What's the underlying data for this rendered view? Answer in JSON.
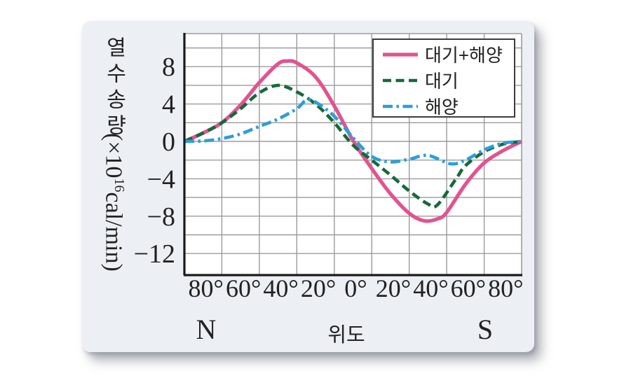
{
  "chart_data": {
    "type": "line",
    "title": "",
    "xlabel": "위도",
    "x_direction_labels": {
      "north": "N",
      "south": "S"
    },
    "ylabel": "열수송량",
    "y_unit": {
      "prefix": "(×10",
      "exponent": "16",
      "suffix": "cal/min)"
    },
    "grid": true,
    "legend_position": "top-right",
    "x_axis": {
      "min_lat": 90,
      "max_lat": -90,
      "positive_direction": "N",
      "gridline_step_deg": 20,
      "ticks": [
        {
          "lat": 80,
          "label": "80°"
        },
        {
          "lat": 60,
          "label": "60°"
        },
        {
          "lat": 40,
          "label": "40°"
        },
        {
          "lat": 20,
          "label": "20°"
        },
        {
          "lat": 0,
          "label": "0°"
        },
        {
          "lat": -20,
          "label": "20°"
        },
        {
          "lat": -40,
          "label": "40°"
        },
        {
          "lat": -60,
          "label": "60°"
        },
        {
          "lat": -80,
          "label": "80°"
        }
      ]
    },
    "y_axis": {
      "top": 11.5,
      "bottom": -14.3,
      "gridline_step": 2,
      "ticks": [
        {
          "value": 8,
          "label": "8"
        },
        {
          "value": 4,
          "label": "4"
        },
        {
          "value": 0,
          "label": "0"
        },
        {
          "value": -4,
          "label": "−4"
        },
        {
          "value": -8,
          "label": "−8"
        },
        {
          "value": -12,
          "label": "−12"
        }
      ]
    },
    "series": [
      {
        "name": "대기+해양",
        "color": "#e2538f",
        "style": "solid",
        "x": [
          90,
          80,
          70,
          60,
          50,
          40,
          35,
          30,
          20,
          10,
          0,
          -10,
          -20,
          -30,
          -38,
          -45,
          -50,
          -60,
          -70,
          -80,
          -90
        ],
        "y": [
          0,
          0.9,
          2.0,
          3.9,
          6.3,
          8.3,
          8.6,
          8.4,
          6.9,
          3.8,
          0.1,
          -2.9,
          -5.6,
          -7.7,
          -8.5,
          -8.3,
          -7.6,
          -4.6,
          -2.3,
          -1.0,
          0
        ]
      },
      {
        "name": "대기",
        "color": "#17693a",
        "style": "dashed",
        "x": [
          90,
          80,
          70,
          60,
          50,
          40,
          30,
          20,
          10,
          0,
          -10,
          -20,
          -30,
          -40,
          -45,
          -55,
          -60,
          -70,
          -80,
          -90
        ],
        "y": [
          0,
          0.9,
          2.0,
          3.5,
          5.2,
          6.0,
          5.3,
          4.0,
          2.0,
          -0.4,
          -2.0,
          -3.6,
          -5.3,
          -6.7,
          -6.8,
          -4.0,
          -2.6,
          -1.1,
          -0.3,
          0
        ]
      },
      {
        "name": "해양",
        "color": "#2b9fd9",
        "style": "dash-dot",
        "x": [
          90,
          80,
          70,
          60,
          50,
          40,
          30,
          25,
          20,
          10,
          0,
          -10,
          -20,
          -30,
          -40,
          -52,
          -60,
          -70,
          -80,
          -90
        ],
        "y": [
          0,
          0.05,
          0.3,
          0.8,
          1.6,
          2.4,
          3.5,
          4.4,
          4.2,
          2.7,
          0.4,
          -1.6,
          -2.2,
          -1.9,
          -1.5,
          -2.4,
          -2.0,
          -0.9,
          -0.2,
          0
        ]
      }
    ],
    "style_colors": {
      "gridline": "#9b9b9b",
      "axis": "#1a1a1a",
      "card_background": "#ecf0f4",
      "plot_background": "#ffffff"
    }
  }
}
